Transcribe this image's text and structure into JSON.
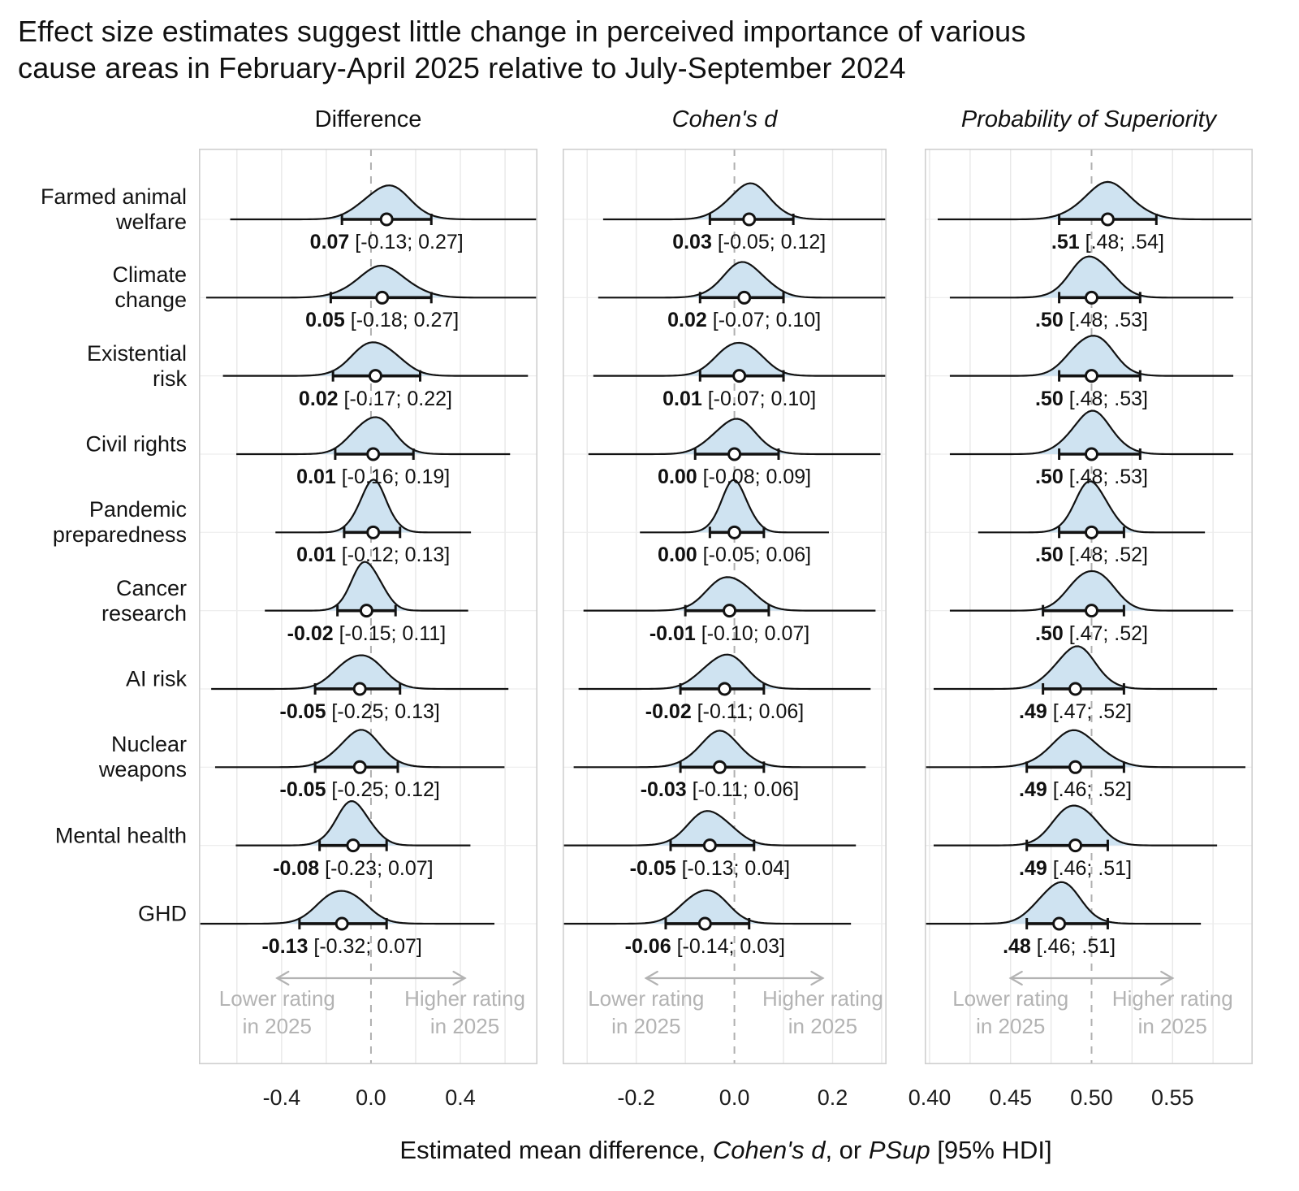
{
  "title": {
    "line1": "Effect size estimates suggest little change in perceived importance of various",
    "line2": "cause areas in February-April 2025 relative to July-September 2024"
  },
  "colors": {
    "density_fill": "#cfe3f1",
    "density_stroke": "#121212",
    "grid": "#e8e8e8",
    "row_grid": "#ededed",
    "reference_line": "#b0b0b0",
    "panel_border": "#cfcfcf",
    "annotation": "#b3b3b3",
    "point_fill": "#ffffff",
    "text": "#111111"
  },
  "chart_data": {
    "type": "ridgeline-forest",
    "x_axis_title_segments": [
      {
        "text": "Estimated mean difference, ",
        "italic": false
      },
      {
        "text": "Cohen's d",
        "italic": true
      },
      {
        "text": ", or ",
        "italic": false
      },
      {
        "text": "PSup",
        "italic": true
      },
      {
        "text": " [95% HDI]",
        "italic": false
      }
    ],
    "categories": [
      {
        "lines": [
          "Farmed animal",
          "welfare"
        ]
      },
      {
        "lines": [
          "Climate",
          "change"
        ]
      },
      {
        "lines": [
          "Existential",
          "risk"
        ]
      },
      {
        "lines": [
          "Civil rights"
        ]
      },
      {
        "lines": [
          "Pandemic",
          "preparedness"
        ]
      },
      {
        "lines": [
          "Cancer",
          "research"
        ]
      },
      {
        "lines": [
          "AI risk"
        ]
      },
      {
        "lines": [
          "Nuclear",
          "weapons"
        ]
      },
      {
        "lines": [
          "Mental health"
        ]
      },
      {
        "lines": [
          "GHD"
        ]
      }
    ],
    "footer_annotation": {
      "left_lines": [
        "Lower rating",
        "in 2025"
      ],
      "right_lines": [
        "Higher rating",
        "in 2025"
      ]
    },
    "panels": [
      {
        "title": "Difference",
        "title_italic": false,
        "reference_line": 0,
        "xlim": [
          -0.77,
          0.745
        ],
        "grid_step": 0.2,
        "arrow_span": [
          -0.42,
          0.42
        ],
        "ticks": [
          {
            "value": -0.4,
            "label": "-0.4"
          },
          {
            "value": 0.0,
            "label": "0.0"
          },
          {
            "value": 0.4,
            "label": "0.4"
          }
        ],
        "rows": [
          {
            "category": "Farmed animal welfare",
            "mean": 0.07,
            "hdi_lower": -0.13,
            "hdi_upper": 0.27,
            "value_text": "0.07",
            "interval_text": "[-0.13; 0.27]"
          },
          {
            "category": "Climate change",
            "mean": 0.05,
            "hdi_lower": -0.18,
            "hdi_upper": 0.27,
            "value_text": "0.05",
            "interval_text": "[-0.18; 0.27]"
          },
          {
            "category": "Existential risk",
            "mean": 0.02,
            "hdi_lower": -0.17,
            "hdi_upper": 0.22,
            "value_text": "0.02",
            "interval_text": "[-0.17; 0.22]"
          },
          {
            "category": "Civil rights",
            "mean": 0.01,
            "hdi_lower": -0.16,
            "hdi_upper": 0.19,
            "value_text": "0.01",
            "interval_text": "[-0.16; 0.19]"
          },
          {
            "category": "Pandemic preparedness",
            "mean": 0.01,
            "hdi_lower": -0.12,
            "hdi_upper": 0.13,
            "value_text": "0.01",
            "interval_text": "[-0.12; 0.13]"
          },
          {
            "category": "Cancer research",
            "mean": -0.02,
            "hdi_lower": -0.15,
            "hdi_upper": 0.11,
            "value_text": "-0.02",
            "interval_text": "[-0.15; 0.11]"
          },
          {
            "category": "AI risk",
            "mean": -0.05,
            "hdi_lower": -0.25,
            "hdi_upper": 0.13,
            "value_text": "-0.05",
            "interval_text": "[-0.25; 0.13]"
          },
          {
            "category": "Nuclear weapons",
            "mean": -0.05,
            "hdi_lower": -0.25,
            "hdi_upper": 0.12,
            "value_text": "-0.05",
            "interval_text": "[-0.25; 0.12]"
          },
          {
            "category": "Mental health",
            "mean": -0.08,
            "hdi_lower": -0.23,
            "hdi_upper": 0.07,
            "value_text": "-0.08",
            "interval_text": "[-0.23; 0.07]"
          },
          {
            "category": "GHD",
            "mean": -0.13,
            "hdi_lower": -0.32,
            "hdi_upper": 0.07,
            "value_text": "-0.13",
            "interval_text": "[-0.32; 0.07]"
          }
        ]
      },
      {
        "title": "Cohen's d",
        "title_italic": true,
        "reference_line": 0,
        "xlim": [
          -0.35,
          0.31
        ],
        "grid_step": 0.1,
        "arrow_span": [
          -0.18,
          0.18
        ],
        "ticks": [
          {
            "value": -0.2,
            "label": "-0.2"
          },
          {
            "value": 0.0,
            "label": "0.0"
          },
          {
            "value": 0.2,
            "label": "0.2"
          }
        ],
        "rows": [
          {
            "category": "Farmed animal welfare",
            "mean": 0.03,
            "hdi_lower": -0.05,
            "hdi_upper": 0.12,
            "value_text": "0.03",
            "interval_text": "[-0.05; 0.12]"
          },
          {
            "category": "Climate change",
            "mean": 0.02,
            "hdi_lower": -0.07,
            "hdi_upper": 0.1,
            "value_text": "0.02",
            "interval_text": "[-0.07; 0.10]"
          },
          {
            "category": "Existential risk",
            "mean": 0.01,
            "hdi_lower": -0.07,
            "hdi_upper": 0.1,
            "value_text": "0.01",
            "interval_text": "[-0.07; 0.10]"
          },
          {
            "category": "Civil rights",
            "mean": 0.0,
            "hdi_lower": -0.08,
            "hdi_upper": 0.09,
            "value_text": "0.00",
            "interval_text": "[-0.08; 0.09]"
          },
          {
            "category": "Pandemic preparedness",
            "mean": 0.0,
            "hdi_lower": -0.05,
            "hdi_upper": 0.06,
            "value_text": "0.00",
            "interval_text": "[-0.05; 0.06]"
          },
          {
            "category": "Cancer research",
            "mean": -0.01,
            "hdi_lower": -0.1,
            "hdi_upper": 0.07,
            "value_text": "-0.01",
            "interval_text": "[-0.10; 0.07]"
          },
          {
            "category": "AI risk",
            "mean": -0.02,
            "hdi_lower": -0.11,
            "hdi_upper": 0.06,
            "value_text": "-0.02",
            "interval_text": "[-0.11; 0.06]"
          },
          {
            "category": "Nuclear weapons",
            "mean": -0.03,
            "hdi_lower": -0.11,
            "hdi_upper": 0.06,
            "value_text": "-0.03",
            "interval_text": "[-0.11; 0.06]"
          },
          {
            "category": "Mental health",
            "mean": -0.05,
            "hdi_lower": -0.13,
            "hdi_upper": 0.04,
            "value_text": "-0.05",
            "interval_text": "[-0.13; 0.04]"
          },
          {
            "category": "GHD",
            "mean": -0.06,
            "hdi_lower": -0.14,
            "hdi_upper": 0.03,
            "value_text": "-0.06",
            "interval_text": "[-0.14; 0.03]"
          }
        ]
      },
      {
        "title": "Probability of Superiority",
        "title_italic": true,
        "reference_line": 0.5,
        "xlim": [
          0.397,
          0.5995
        ],
        "grid_step": 0.025,
        "arrow_span": [
          0.45,
          0.55
        ],
        "ticks": [
          {
            "value": 0.4,
            "label": "0.40"
          },
          {
            "value": 0.45,
            "label": "0.45"
          },
          {
            "value": 0.5,
            "label": "0.50"
          },
          {
            "value": 0.55,
            "label": "0.55"
          }
        ],
        "rows": [
          {
            "category": "Farmed animal welfare",
            "mean": 0.51,
            "hdi_lower": 0.48,
            "hdi_upper": 0.54,
            "value_text": ".51",
            "interval_text": "[.48; .54]"
          },
          {
            "category": "Climate change",
            "mean": 0.5,
            "hdi_lower": 0.48,
            "hdi_upper": 0.53,
            "value_text": ".50",
            "interval_text": "[.48; .53]"
          },
          {
            "category": "Existential risk",
            "mean": 0.5,
            "hdi_lower": 0.48,
            "hdi_upper": 0.53,
            "value_text": ".50",
            "interval_text": "[.48; .53]"
          },
          {
            "category": "Civil rights",
            "mean": 0.5,
            "hdi_lower": 0.48,
            "hdi_upper": 0.53,
            "value_text": ".50",
            "interval_text": "[.48; .53]"
          },
          {
            "category": "Pandemic preparedness",
            "mean": 0.5,
            "hdi_lower": 0.48,
            "hdi_upper": 0.52,
            "value_text": ".50",
            "interval_text": "[.48; .52]"
          },
          {
            "category": "Cancer research",
            "mean": 0.5,
            "hdi_lower": 0.47,
            "hdi_upper": 0.52,
            "value_text": ".50",
            "interval_text": "[.47; .52]"
          },
          {
            "category": "AI risk",
            "mean": 0.49,
            "hdi_lower": 0.47,
            "hdi_upper": 0.52,
            "value_text": ".49",
            "interval_text": "[.47; .52]"
          },
          {
            "category": "Nuclear weapons",
            "mean": 0.49,
            "hdi_lower": 0.46,
            "hdi_upper": 0.52,
            "value_text": ".49",
            "interval_text": "[.46; .52]"
          },
          {
            "category": "Mental health",
            "mean": 0.49,
            "hdi_lower": 0.46,
            "hdi_upper": 0.51,
            "value_text": ".49",
            "interval_text": "[.46; .51]"
          },
          {
            "category": "GHD",
            "mean": 0.48,
            "hdi_lower": 0.46,
            "hdi_upper": 0.51,
            "value_text": ".48",
            "interval_text": "[.46; .51]"
          }
        ]
      }
    ]
  }
}
